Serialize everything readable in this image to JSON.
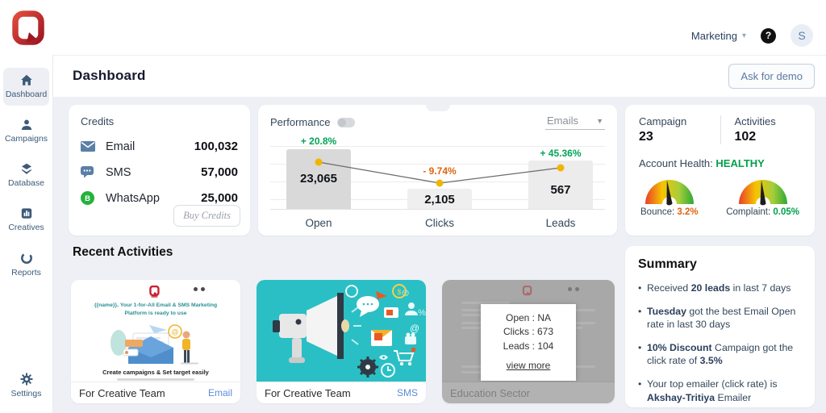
{
  "topbar": {
    "org": "Marketing",
    "help": "?",
    "avatar_initial": "S"
  },
  "header": {
    "title": "Dashboard",
    "demo_button": "Ask for demo"
  },
  "sidebar": {
    "items": [
      {
        "label": "Dashboard",
        "active": true
      },
      {
        "label": "Campaigns",
        "active": false
      },
      {
        "label": "Database",
        "active": false
      },
      {
        "label": "Creatives",
        "active": false
      },
      {
        "label": "Reports",
        "active": false
      },
      {
        "label": "Settings",
        "active": false
      }
    ]
  },
  "credits": {
    "title": "Credits",
    "rows": [
      {
        "channel": "Email",
        "value": "100,032"
      },
      {
        "channel": "SMS",
        "value": "57,000"
      },
      {
        "channel": "WhatsApp",
        "value": "25,000"
      }
    ],
    "buy_button": "Buy Credits"
  },
  "performance": {
    "title": "Performance",
    "filter": "Emails"
  },
  "chart_data": {
    "type": "bar",
    "title": "Performance",
    "categories": [
      "Open",
      "Clicks",
      "Leads"
    ],
    "values": [
      23065,
      2105,
      567
    ],
    "value_labels": [
      "23,065",
      "2,105",
      "567"
    ],
    "deltas": [
      "+ 20.8%",
      "- 9.74%",
      "+ 45.36%"
    ],
    "delta_directions": [
      "up",
      "down",
      "up"
    ],
    "filter_selected": "Emails",
    "grid": true,
    "colors": {
      "up": "#00a457",
      "down": "#dd6410",
      "dot": "#f1b500",
      "bar_active": "#d9d9d9",
      "bar": "#efefef"
    }
  },
  "stats": {
    "campaign_label": "Campaign",
    "campaign_value": "23",
    "activities_label": "Activities",
    "activities_value": "102",
    "health_label": "Account Health:",
    "health_value": "HEALTHY",
    "health_color": "#00a14b",
    "gauges": [
      {
        "label": "Bounce:",
        "value": "3.2%",
        "color": "#dd6410"
      },
      {
        "label": "Complaint:",
        "value": "0.05%",
        "color": "#00a14b"
      }
    ]
  },
  "recent": {
    "title": "Recent Activities",
    "cards": [
      {
        "title": "For Creative Team",
        "tag": "Email",
        "preview_heading": "{{name}}, Your 1-for-All Email & SMS Marketing Platform is ready to use",
        "preview_cta": "Create campaigns & Set target easily"
      },
      {
        "title": "For Creative Team",
        "tag": "SMS"
      },
      {
        "title": "Education Sector",
        "tag": "",
        "tooltip": {
          "lines": [
            "Open : NA",
            "Clicks : 673",
            "Leads : 104"
          ],
          "link": "view more"
        }
      }
    ]
  },
  "summary": {
    "title": "Summary",
    "bullets": [
      [
        {
          "t": "Received "
        },
        {
          "t": "20 leads",
          "b": 1
        },
        {
          "t": " in last 7 days"
        }
      ],
      [
        {
          "t": "Tuesday",
          "b": 1
        },
        {
          "t": " got the best Email Open rate in last 30 days"
        }
      ],
      [
        {
          "t": "10% Discount",
          "b": 1
        },
        {
          "t": " Campaign got the click rate of "
        },
        {
          "t": "3.5%",
          "b": 1
        }
      ],
      [
        {
          "t": "Your top emailer (click rate) is "
        },
        {
          "t": "Akshay-Tritiya",
          "b": 1
        },
        {
          "t": " Emailer"
        }
      ]
    ]
  }
}
